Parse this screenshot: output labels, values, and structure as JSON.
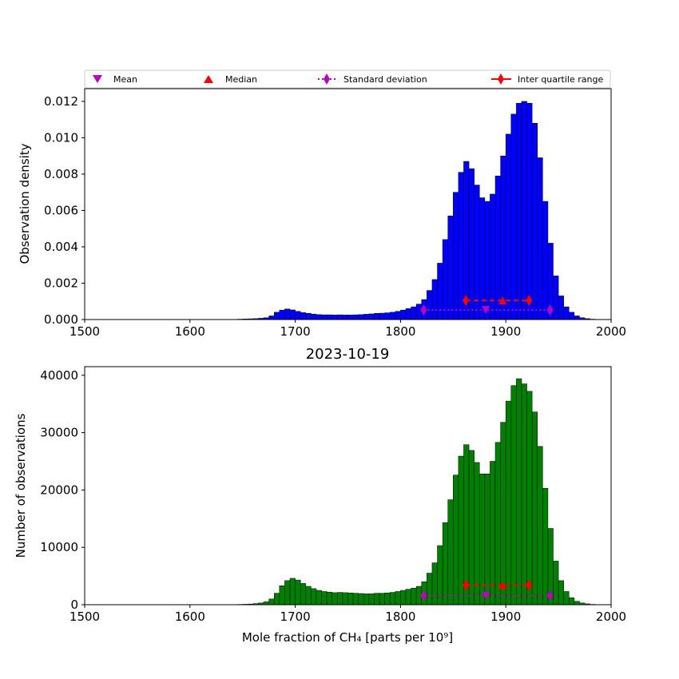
{
  "legend": {
    "mean": "Mean",
    "median": "Median",
    "std": "Standard deviation",
    "iqr": "Inter quartile range"
  },
  "colors": {
    "density_bars": "#0000ff",
    "count_bars": "#008000",
    "mean": "#bf00bf",
    "median": "#ff0000",
    "std": "#bf00bf",
    "iqr": "#ff0000"
  },
  "chart_data": [
    {
      "type": "bar",
      "title": "",
      "xlabel": "",
      "ylabel": "Observation density",
      "xlim": [
        1500,
        2000
      ],
      "ylim": [
        0,
        0.0127
      ],
      "xticks": [
        "1500",
        "1600",
        "1700",
        "1800",
        "1900",
        "2000"
      ],
      "yticks": [
        "0.000",
        "0.002",
        "0.004",
        "0.006",
        "0.008",
        "0.010",
        "0.012"
      ],
      "legend_position": "top",
      "bin_start": 1645,
      "bin_width": 5,
      "values": [
        2e-05,
        3e-05,
        4e-05,
        5e-05,
        7e-05,
        0.0001,
        0.0002,
        0.0004,
        0.00052,
        0.00058,
        0.00053,
        0.00045,
        0.00038,
        0.00034,
        0.0003,
        0.00027,
        0.00026,
        0.00026,
        0.00025,
        0.00026,
        0.00025,
        0.00025,
        0.00026,
        0.00027,
        0.00029,
        0.00031,
        0.00034,
        0.00035,
        0.00037,
        0.0004,
        0.00045,
        0.00052,
        0.0006,
        0.0007,
        0.00085,
        0.0011,
        0.0016,
        0.0022,
        0.0031,
        0.0044,
        0.0057,
        0.007,
        0.0081,
        0.0087,
        0.0083,
        0.0074,
        0.0067,
        0.0065,
        0.0069,
        0.0079,
        0.009,
        0.0102,
        0.0113,
        0.0119,
        0.012,
        0.0119,
        0.0108,
        0.0089,
        0.0065,
        0.0042,
        0.0024,
        0.0013,
        0.0007,
        0.0004,
        0.0002,
        0.0001,
        5e-05,
        2e-05,
        1e-05
      ],
      "markers": {
        "mean": 1881,
        "median": 1897,
        "std_range": [
          1822,
          1942
        ],
        "iqr_range": [
          1862,
          1922
        ],
        "iqr_y": 0.00105,
        "stat_y": 0.00052
      }
    },
    {
      "type": "bar",
      "title": "2023-10-19",
      "xlabel": "Mole fraction of CH₄ [parts per 10⁹]",
      "ylabel": "Number of observations",
      "xlim": [
        1500,
        2000
      ],
      "ylim": [
        0,
        41500
      ],
      "xticks": [
        "1500",
        "1600",
        "1700",
        "1800",
        "1900",
        "2000"
      ],
      "yticks": [
        "0",
        "10000",
        "20000",
        "30000",
        "40000"
      ],
      "bin_start": 1645,
      "bin_width": 5,
      "values": [
        50,
        80,
        120,
        200,
        300,
        500,
        1000,
        2000,
        3300,
        4200,
        4600,
        4300,
        3700,
        3200,
        2800,
        2500,
        2300,
        2200,
        2100,
        2150,
        2100,
        2050,
        2000,
        1950,
        1900,
        1900,
        2000,
        2000,
        2050,
        2150,
        2300,
        2500,
        2700,
        2900,
        3200,
        4000,
        5500,
        7300,
        10300,
        14300,
        18300,
        22600,
        25900,
        27900,
        26900,
        24800,
        22800,
        22800,
        25000,
        28300,
        31800,
        35500,
        38200,
        39400,
        38500,
        37200,
        33600,
        27600,
        20300,
        13300,
        7600,
        4200,
        2300,
        1200,
        600,
        300,
        150,
        60,
        20
      ],
      "markers": {
        "mean": 1881,
        "median": 1897,
        "std_range": [
          1822,
          1942
        ],
        "iqr_range": [
          1862,
          1922
        ],
        "iqr_y": 3400,
        "stat_y": 1600
      }
    }
  ]
}
